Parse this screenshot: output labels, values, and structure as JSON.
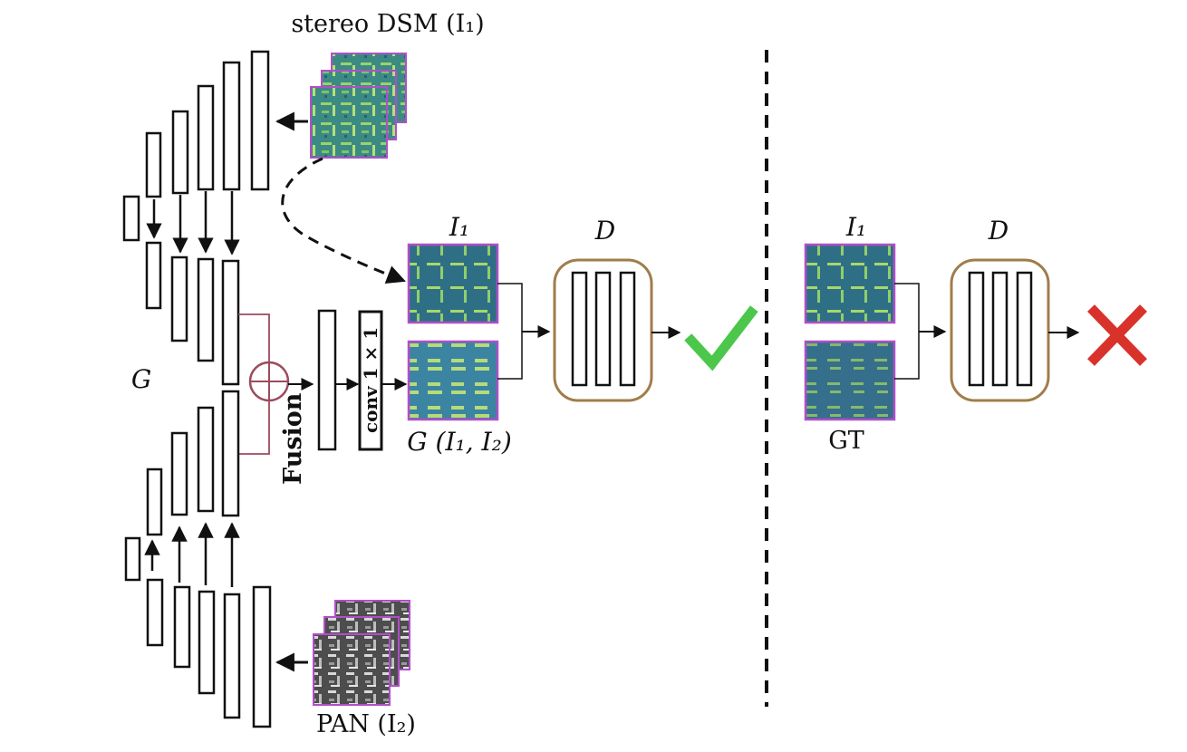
{
  "labels": {
    "stereo_dsm": "stereo DSM (I₁)",
    "pan": "PAN (I₂)",
    "generator": "G",
    "discriminator_left": "D",
    "discriminator_right": "D",
    "input_i1_left": "I₁",
    "input_i1_right": "I₁",
    "generated": "G (I₁, I₂)",
    "ground_truth": "GT",
    "fusion": "Fusion",
    "conv": "conv 1 × 1"
  },
  "outcomes": {
    "real": "check",
    "fake": "cross"
  },
  "icons": {
    "check": "check-mark-icon",
    "cross": "cross-mark-icon",
    "sum": "circle-plus-icon"
  },
  "colors": {
    "discriminator_border": "#a07d4a",
    "image_border": "#b04fc8",
    "fusion_line": "#9c4a5e",
    "check": "#4cc74b",
    "cross": "#d8322b",
    "dsm_fill": "#3f8c86",
    "pan_fill": "#5a5a5a"
  }
}
